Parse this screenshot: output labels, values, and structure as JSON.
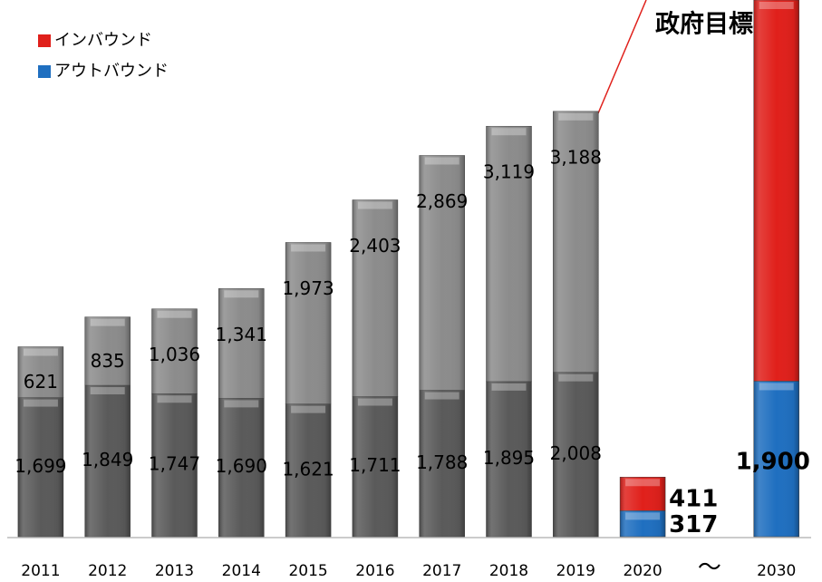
{
  "chart_data": {
    "type": "bar",
    "stacked": true,
    "annotation": "政府目標",
    "categories": [
      "2011",
      "2012",
      "2013",
      "2014",
      "2015",
      "2016",
      "2017",
      "2018",
      "2019",
      "2020",
      "〜",
      "2030"
    ],
    "series": [
      {
        "name": "アウトバウンド",
        "color": "#1f6fc0",
        "colors": [
          "#5a5a5a",
          "#5a5a5a",
          "#5a5a5a",
          "#5a5a5a",
          "#5a5a5a",
          "#5a5a5a",
          "#5a5a5a",
          "#5a5a5a",
          "#5a5a5a",
          "#1f6fc0",
          null,
          "#1f6fc0"
        ],
        "values": [
          1699,
          1849,
          1747,
          1690,
          1621,
          1711,
          1788,
          1895,
          2008,
          317,
          null,
          1900
        ],
        "value_labels": [
          "1,699",
          "1,849",
          "1,747",
          "1,690",
          "1,621",
          "1,711",
          "1,788",
          "1,895",
          "2,008",
          "317",
          null,
          "1,900"
        ]
      },
      {
        "name": "インバウンド",
        "color": "#e0201b",
        "colors": [
          "#8c8c8c",
          "#8c8c8c",
          "#8c8c8c",
          "#8c8c8c",
          "#8c8c8c",
          "#8c8c8c",
          "#8c8c8c",
          "#8c8c8c",
          "#8c8c8c",
          "#e0201b",
          null,
          "#e0201b"
        ],
        "values": [
          621,
          835,
          1036,
          1341,
          1973,
          2403,
          2869,
          3119,
          3188,
          411,
          null,
          6000
        ],
        "value_labels": [
          "621",
          "835",
          "1,036",
          "1,341",
          "1,973",
          "2,403",
          "2,869",
          "3,119",
          "3,188",
          "411",
          null,
          null
        ]
      }
    ]
  }
}
